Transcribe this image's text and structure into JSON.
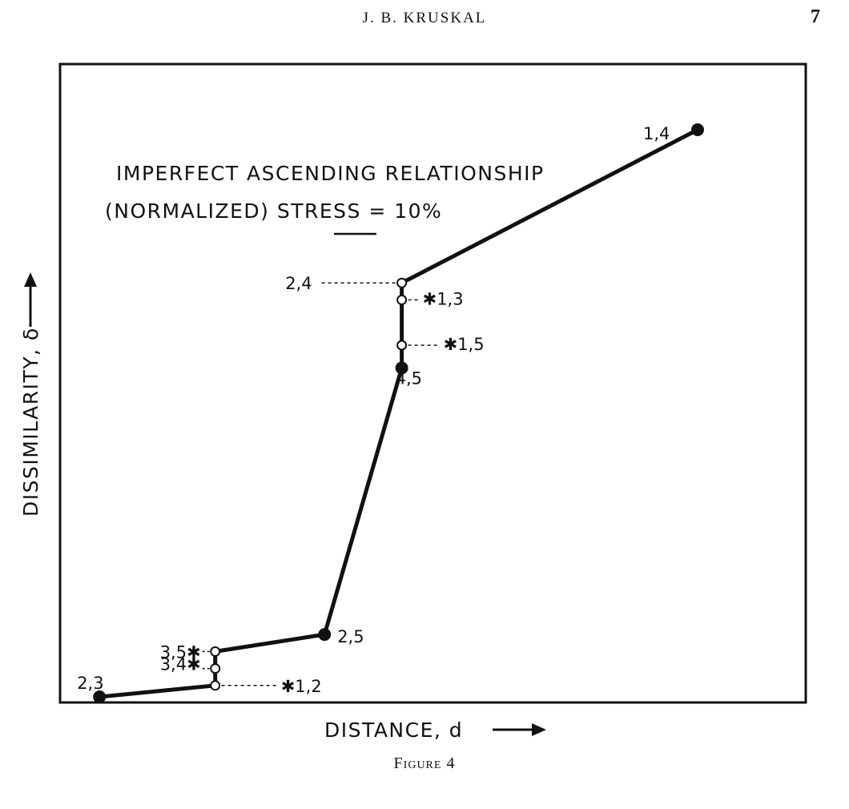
{
  "page": {
    "running_head": "J. B. KRUSKAL",
    "page_number": "7",
    "caption": "Figure 4"
  },
  "chart_data": {
    "type": "line",
    "title": "",
    "annotation_line1": "IMPERFECT ASCENDING RELATIONSHIP",
    "annotation_line2": "(NORMALIZED) STRESS = 10%",
    "xlabel": "DISTANCE, d",
    "ylabel": "DISSIMILARITY, δ",
    "xlim": [
      0,
      100
    ],
    "ylim": [
      0,
      100
    ],
    "grid": false,
    "points": [
      {
        "label": "2,3",
        "x": 6.0,
        "y": 0.0,
        "kind": "filled"
      },
      {
        "label": "1,2",
        "x": 24.0,
        "y": 2.0,
        "kind": "open"
      },
      {
        "label": "3,4",
        "x": 24.0,
        "y": 5.0,
        "kind": "open"
      },
      {
        "label": "3,5",
        "x": 24.0,
        "y": 8.0,
        "kind": "open"
      },
      {
        "label": "2,5",
        "x": 41.0,
        "y": 11.0,
        "kind": "filled"
      },
      {
        "label": "4,5",
        "x": 53.0,
        "y": 58.0,
        "kind": "filled"
      },
      {
        "label": "1,5",
        "x": 53.0,
        "y": 62.0,
        "kind": "open"
      },
      {
        "label": "1,3",
        "x": 53.0,
        "y": 70.0,
        "kind": "open"
      },
      {
        "label": "2,4",
        "x": 53.0,
        "y": 73.0,
        "kind": "open"
      },
      {
        "label": "1,4",
        "x": 99.0,
        "y": 100.0,
        "kind": "filled"
      }
    ],
    "fitted_line": [
      {
        "x": 6.0,
        "y": 0.0
      },
      {
        "x": 24.0,
        "y": 2.0
      },
      {
        "x": 24.0,
        "y": 8.0
      },
      {
        "x": 41.0,
        "y": 11.0
      },
      {
        "x": 53.0,
        "y": 58.0
      },
      {
        "x": 53.0,
        "y": 73.0
      },
      {
        "x": 99.0,
        "y": 100.0
      }
    ]
  }
}
